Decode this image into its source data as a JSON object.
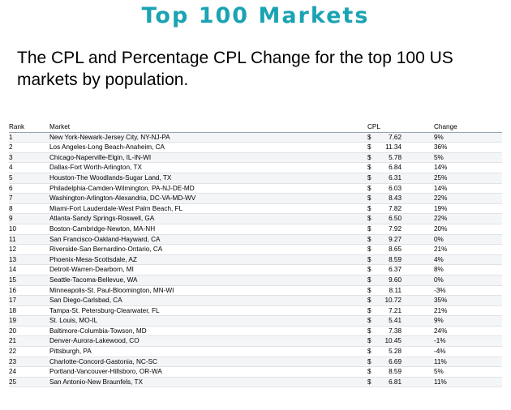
{
  "title": "Top 100 Markets",
  "subtitle": "The CPL and Percentage CPL Change for the top 100 US markets by population.",
  "table": {
    "headers": {
      "rank": "Rank",
      "market": "Market",
      "cpl": "CPL",
      "change": "Change"
    },
    "currency_symbol": "$",
    "rows": [
      {
        "rank": "1",
        "market": "New York-Newark-Jersey City, NY-NJ-PA",
        "cpl": "7.62",
        "change": "9%"
      },
      {
        "rank": "2",
        "market": "Los Angeles-Long Beach-Anaheim, CA",
        "cpl": "11.34",
        "change": "36%"
      },
      {
        "rank": "3",
        "market": "Chicago-Naperville-Elgin, IL-IN-WI",
        "cpl": "5.78",
        "change": "5%"
      },
      {
        "rank": "4",
        "market": "Dallas-Fort Worth-Arlington, TX",
        "cpl": "6.84",
        "change": "14%"
      },
      {
        "rank": "5",
        "market": "Houston-The Woodlands-Sugar Land, TX",
        "cpl": "6.31",
        "change": "25%"
      },
      {
        "rank": "6",
        "market": "Philadelphia-Camden-Wilmington, PA-NJ-DE-MD",
        "cpl": "6.03",
        "change": "14%"
      },
      {
        "rank": "7",
        "market": "Washington-Arlington-Alexandria, DC-VA-MD-WV",
        "cpl": "8.43",
        "change": "22%"
      },
      {
        "rank": "8",
        "market": "Miami-Fort Lauderdale-West Palm Beach, FL",
        "cpl": "7.82",
        "change": "19%"
      },
      {
        "rank": "9",
        "market": "Atlanta-Sandy Springs-Roswell, GA",
        "cpl": "6.50",
        "change": "22%"
      },
      {
        "rank": "10",
        "market": "Boston-Cambridge-Newton, MA-NH",
        "cpl": "7.92",
        "change": "20%"
      },
      {
        "rank": "11",
        "market": "San Francisco-Oakland-Hayward, CA",
        "cpl": "9.27",
        "change": "0%"
      },
      {
        "rank": "12",
        "market": "Riverside-San Bernardino-Ontario, CA",
        "cpl": "8.65",
        "change": "21%"
      },
      {
        "rank": "13",
        "market": "Phoenix-Mesa-Scottsdale, AZ",
        "cpl": "8.59",
        "change": "4%"
      },
      {
        "rank": "14",
        "market": "Detroit-Warren-Dearborn, MI",
        "cpl": "6.37",
        "change": "8%"
      },
      {
        "rank": "15",
        "market": "Seattle-Tacoma-Bellevue, WA",
        "cpl": "9.60",
        "change": "0%"
      },
      {
        "rank": "16",
        "market": "Minneapolis-St. Paul-Bloomington, MN-WI",
        "cpl": "8.11",
        "change": "-3%"
      },
      {
        "rank": "17",
        "market": "San Diego-Carlsbad, CA",
        "cpl": "10.72",
        "change": "35%"
      },
      {
        "rank": "18",
        "market": "Tampa-St. Petersburg-Clearwater, FL",
        "cpl": "7.21",
        "change": "21%"
      },
      {
        "rank": "19",
        "market": "St. Louis, MO-IL",
        "cpl": "5.41",
        "change": "9%"
      },
      {
        "rank": "20",
        "market": "Baltimore-Columbia-Towson, MD",
        "cpl": "7.38",
        "change": "24%"
      },
      {
        "rank": "21",
        "market": "Denver-Aurora-Lakewood, CO",
        "cpl": "10.45",
        "change": "-1%"
      },
      {
        "rank": "22",
        "market": "Pittsburgh, PA",
        "cpl": "5.28",
        "change": "-4%"
      },
      {
        "rank": "23",
        "market": "Charlotte-Concord-Gastonia, NC-SC",
        "cpl": "6.69",
        "change": "11%"
      },
      {
        "rank": "24",
        "market": "Portland-Vancouver-Hillsboro, OR-WA",
        "cpl": "8.59",
        "change": "5%"
      },
      {
        "rank": "25",
        "market": "San Antonio-New Braunfels, TX",
        "cpl": "6.81",
        "change": "11%"
      }
    ]
  }
}
